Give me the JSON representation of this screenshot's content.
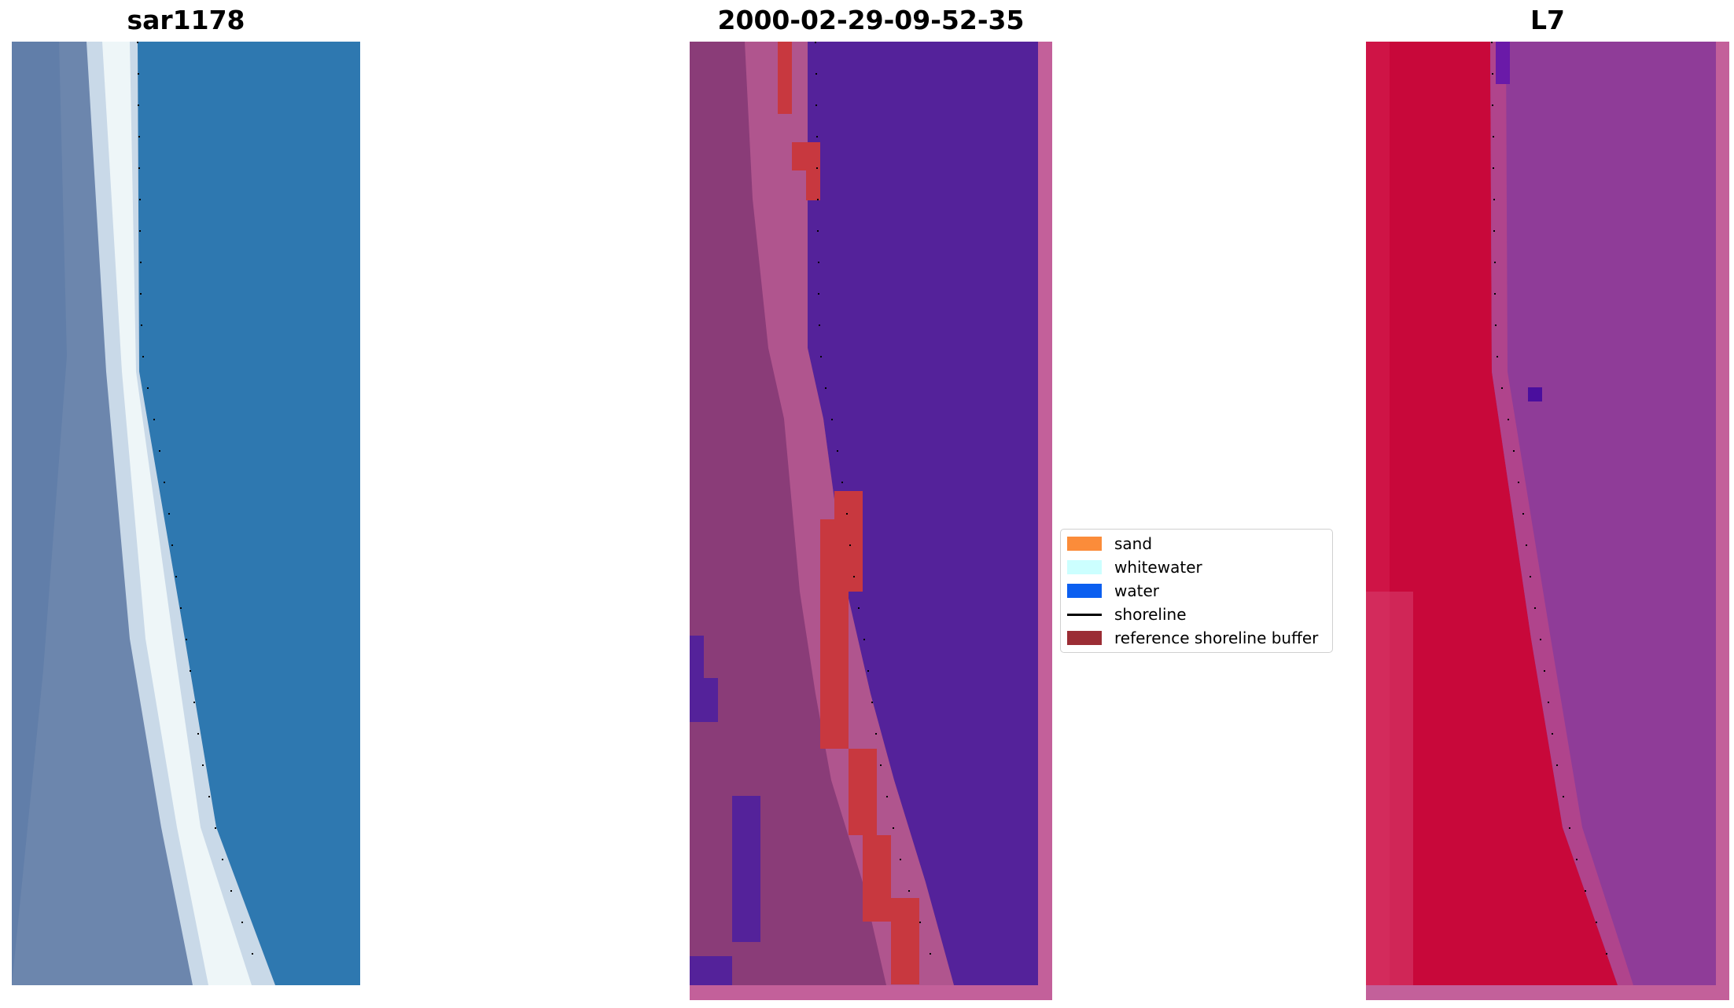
{
  "panels": [
    {
      "title": "sar1178"
    },
    {
      "title": "2000-02-29-09-52-35"
    },
    {
      "title": "L7"
    }
  ],
  "legend": {
    "items": [
      {
        "label": "sand",
        "color": "#fb8c3a",
        "kind": "patch"
      },
      {
        "label": "whitewater",
        "color": "#ccffff",
        "kind": "patch"
      },
      {
        "label": "water",
        "color": "#0b5ff0",
        "kind": "patch"
      },
      {
        "label": "shoreline",
        "color": "#000000",
        "kind": "line"
      },
      {
        "label": "reference shoreline buffer",
        "color": "#9b2d35",
        "kind": "patch"
      }
    ]
  },
  "colors": {
    "rgb_water": "#2e78b0",
    "rgb_whitewater": "#e8f2f6",
    "classified_water": "#54229a",
    "classified_land": "#8a3c78",
    "buffer_red": "#c8383f",
    "frame_pink": "#c3609a",
    "swir_land": "#c8083a",
    "swir_water": "#8f3c98"
  }
}
